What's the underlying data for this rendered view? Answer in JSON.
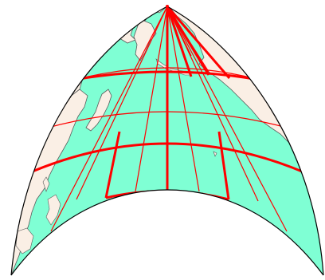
{
  "map": {
    "projection_shape": "conic-fan",
    "labels": []
  },
  "colors": {
    "ocean": "#7fffd4",
    "land": "#faefe5",
    "land_stroke": "#5a5a5a",
    "graticule": "#ff0000",
    "border": "#000000"
  },
  "legend": {
    "items": []
  }
}
